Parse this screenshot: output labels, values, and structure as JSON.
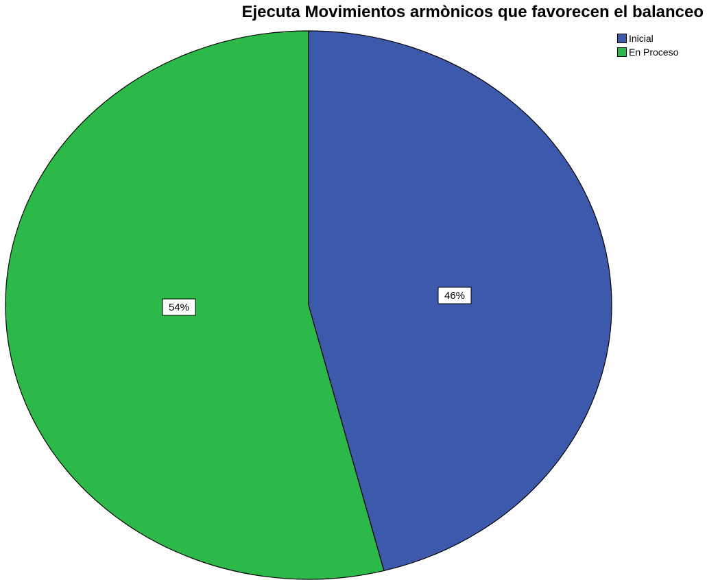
{
  "chart_data": {
    "type": "pie",
    "title": "Ejecuta Movimientos armònicos que favorecen el balanceo",
    "legend_position": "top-right",
    "slices": [
      {
        "label": "Inicial",
        "value": 46,
        "value_label": "46%",
        "color": "#3d59ab"
      },
      {
        "label": "En Proceso",
        "value": 54,
        "value_label": "54%",
        "color": "#2db84a"
      }
    ]
  }
}
